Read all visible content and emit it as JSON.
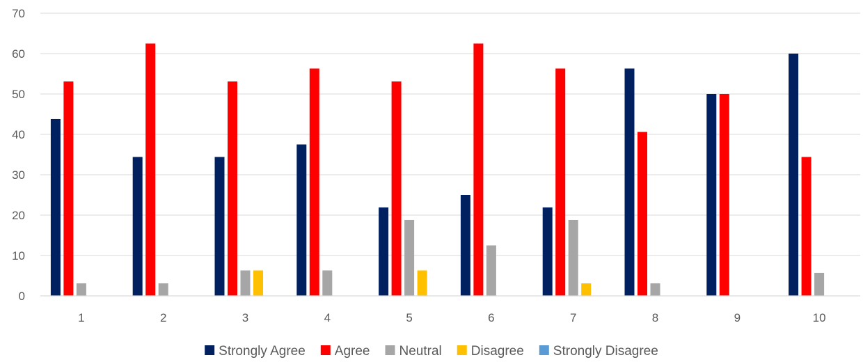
{
  "chart_data": {
    "type": "bar",
    "title": "",
    "xlabel": "",
    "ylabel": "",
    "categories": [
      "1",
      "2",
      "3",
      "4",
      "5",
      "6",
      "7",
      "8",
      "9",
      "10"
    ],
    "ylim": [
      0,
      70
    ],
    "yticks": [
      "0",
      "10",
      "20",
      "30",
      "40",
      "50",
      "60",
      "70"
    ],
    "grid": true,
    "legend_position": "bottom",
    "series": [
      {
        "name": "Strongly Agree",
        "color": "#002060",
        "values": [
          43.8,
          34.4,
          34.4,
          37.5,
          21.9,
          25.0,
          21.9,
          56.3,
          50.0,
          60.0
        ]
      },
      {
        "name": "Agree",
        "color": "#ff0000",
        "values": [
          53.1,
          62.5,
          53.1,
          56.3,
          53.1,
          62.5,
          56.3,
          40.6,
          50.0,
          34.4
        ]
      },
      {
        "name": "Neutral",
        "color": "#a6a6a6",
        "values": [
          3.1,
          3.1,
          6.3,
          6.3,
          18.8,
          12.5,
          18.8,
          3.1,
          0,
          5.7
        ]
      },
      {
        "name": "Disagree",
        "color": "#ffc000",
        "values": [
          0,
          0,
          6.3,
          0,
          6.3,
          0,
          3.1,
          0,
          0,
          0
        ]
      },
      {
        "name": "Strongly Disagree",
        "color": "#5b9bd5",
        "values": [
          0,
          0,
          0,
          0,
          0,
          0,
          0,
          0,
          0,
          0
        ]
      }
    ]
  }
}
